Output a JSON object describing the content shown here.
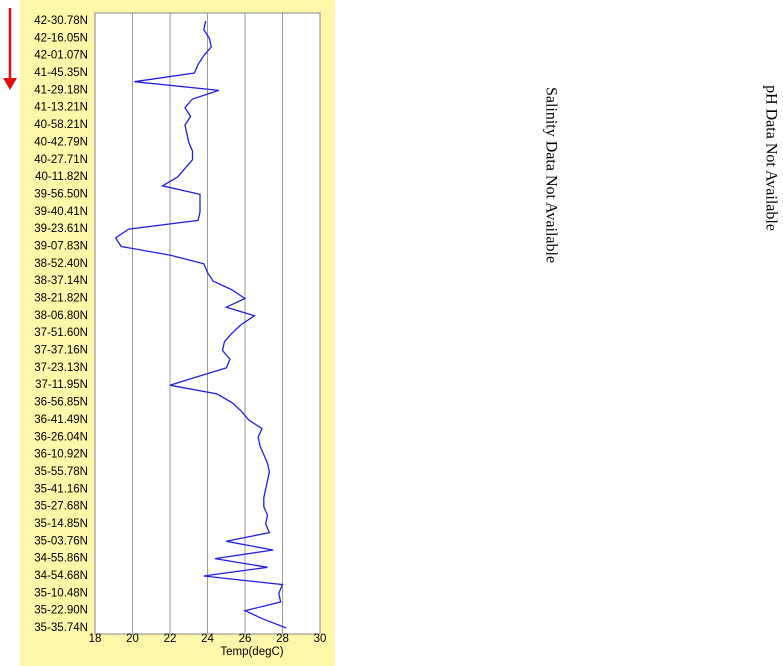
{
  "chart_data": {
    "type": "line",
    "orientation": "horizontal",
    "x_label": "Temp(degC)",
    "annotations": [
      "Salinity Data Not Available",
      "pH Data Not Available"
    ],
    "categories": [
      "42-30.78N",
      null,
      "42-16.05N",
      null,
      "42-01.07N",
      null,
      "41-45.35N",
      null,
      "41-29.18N",
      null,
      "41-13.21N",
      null,
      "40-58.21N",
      null,
      "40-42.79N",
      null,
      "40-27.71N",
      null,
      "40-11.82N",
      null,
      "39-56.50N",
      null,
      "39-40.41N",
      null,
      "39-23.61N",
      null,
      "39-07.83N",
      null,
      "38-52.40N",
      null,
      "38-37.14N",
      null,
      "38-21.82N",
      null,
      "38-06.80N",
      null,
      "37-51.60N",
      null,
      "37-37.16N",
      null,
      "37-23.13N",
      null,
      "37-11.95N",
      null,
      "36-56.85N",
      null,
      "36-41.49N",
      null,
      "36-26.04N",
      null,
      "36-10.92N",
      null,
      "35-55.78N",
      null,
      "35-41.16N",
      null,
      "35-27.68N",
      null,
      "35-14.85N",
      null,
      "35-03.76N",
      null,
      "34-55.86N",
      null,
      "34-54.68N",
      null,
      "35-10.48N",
      null,
      "35-22.90N",
      null,
      "35-35.74N"
    ],
    "values": [
      23.9,
      23.8,
      24.1,
      24.2,
      23.8,
      23.5,
      23.3,
      20.1,
      24.6,
      23.2,
      22.8,
      23.1,
      22.8,
      22.9,
      23.0,
      23.2,
      23.2,
      22.8,
      22.4,
      21.6,
      23.6,
      23.6,
      23.6,
      23.5,
      19.8,
      19.1,
      19.4,
      22.0,
      23.8,
      24.0,
      24.3,
      25.3,
      26.0,
      25.0,
      26.5,
      25.8,
      25.3,
      24.9,
      24.8,
      25.2,
      25.0,
      23.5,
      22.0,
      24.5,
      25.3,
      25.8,
      26.2,
      26.9,
      26.7,
      26.8,
      27.0,
      27.2,
      27.3,
      27.2,
      27.1,
      27.0,
      27.0,
      27.2,
      27.1,
      27.3,
      25.0,
      27.5,
      24.4,
      27.2,
      23.8,
      28.0,
      27.8,
      27.9,
      26.0,
      27.0,
      28.2
    ],
    "color": "#2020e0",
    "xlim": [
      18,
      30
    ],
    "xticks": [
      18,
      20,
      22,
      24,
      26,
      28,
      30
    ],
    "grid": true
  }
}
